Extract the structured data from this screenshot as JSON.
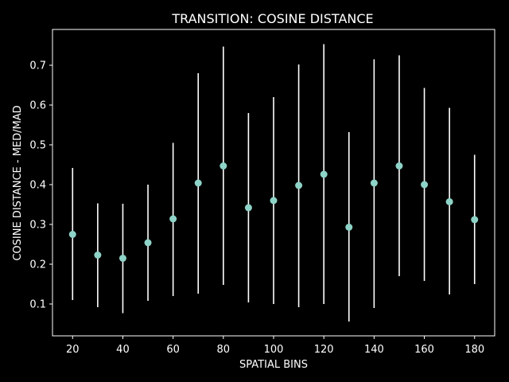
{
  "chart_data": {
    "type": "scatter",
    "title": "TRANSITION: COSINE DISTANCE",
    "xlabel": "SPATIAL BINS",
    "ylabel": "COSINE DISTANCE - MED/MAD",
    "xlim": [
      12,
      188
    ],
    "ylim": [
      0.02,
      0.79
    ],
    "xticks": [
      20,
      40,
      60,
      80,
      100,
      120,
      140,
      160,
      180
    ],
    "yticks": [
      0.1,
      0.2,
      0.3,
      0.4,
      0.5,
      0.6,
      0.7
    ],
    "grid": false,
    "colors": {
      "background": "#000000",
      "marker": "#8dd3c7",
      "errorbar": "#ffffff",
      "axes": "#ffffff"
    },
    "series": [
      {
        "x": [
          20,
          30,
          40,
          50,
          60,
          70,
          80,
          90,
          100,
          110,
          120,
          130,
          140,
          150,
          160,
          170,
          180
        ],
        "y": [
          0.275,
          0.223,
          0.215,
          0.254,
          0.314,
          0.404,
          0.447,
          0.342,
          0.36,
          0.398,
          0.426,
          0.293,
          0.404,
          0.447,
          0.4,
          0.357,
          0.312
        ],
        "ylow": [
          0.11,
          0.092,
          0.077,
          0.108,
          0.12,
          0.126,
          0.148,
          0.104,
          0.1,
          0.092,
          0.1,
          0.056,
          0.09,
          0.17,
          0.158,
          0.124,
          0.15
        ],
        "yhigh": [
          0.442,
          0.353,
          0.352,
          0.4,
          0.505,
          0.68,
          0.747,
          0.58,
          0.62,
          0.702,
          0.753,
          0.532,
          0.715,
          0.725,
          0.643,
          0.593,
          0.475
        ]
      }
    ]
  }
}
